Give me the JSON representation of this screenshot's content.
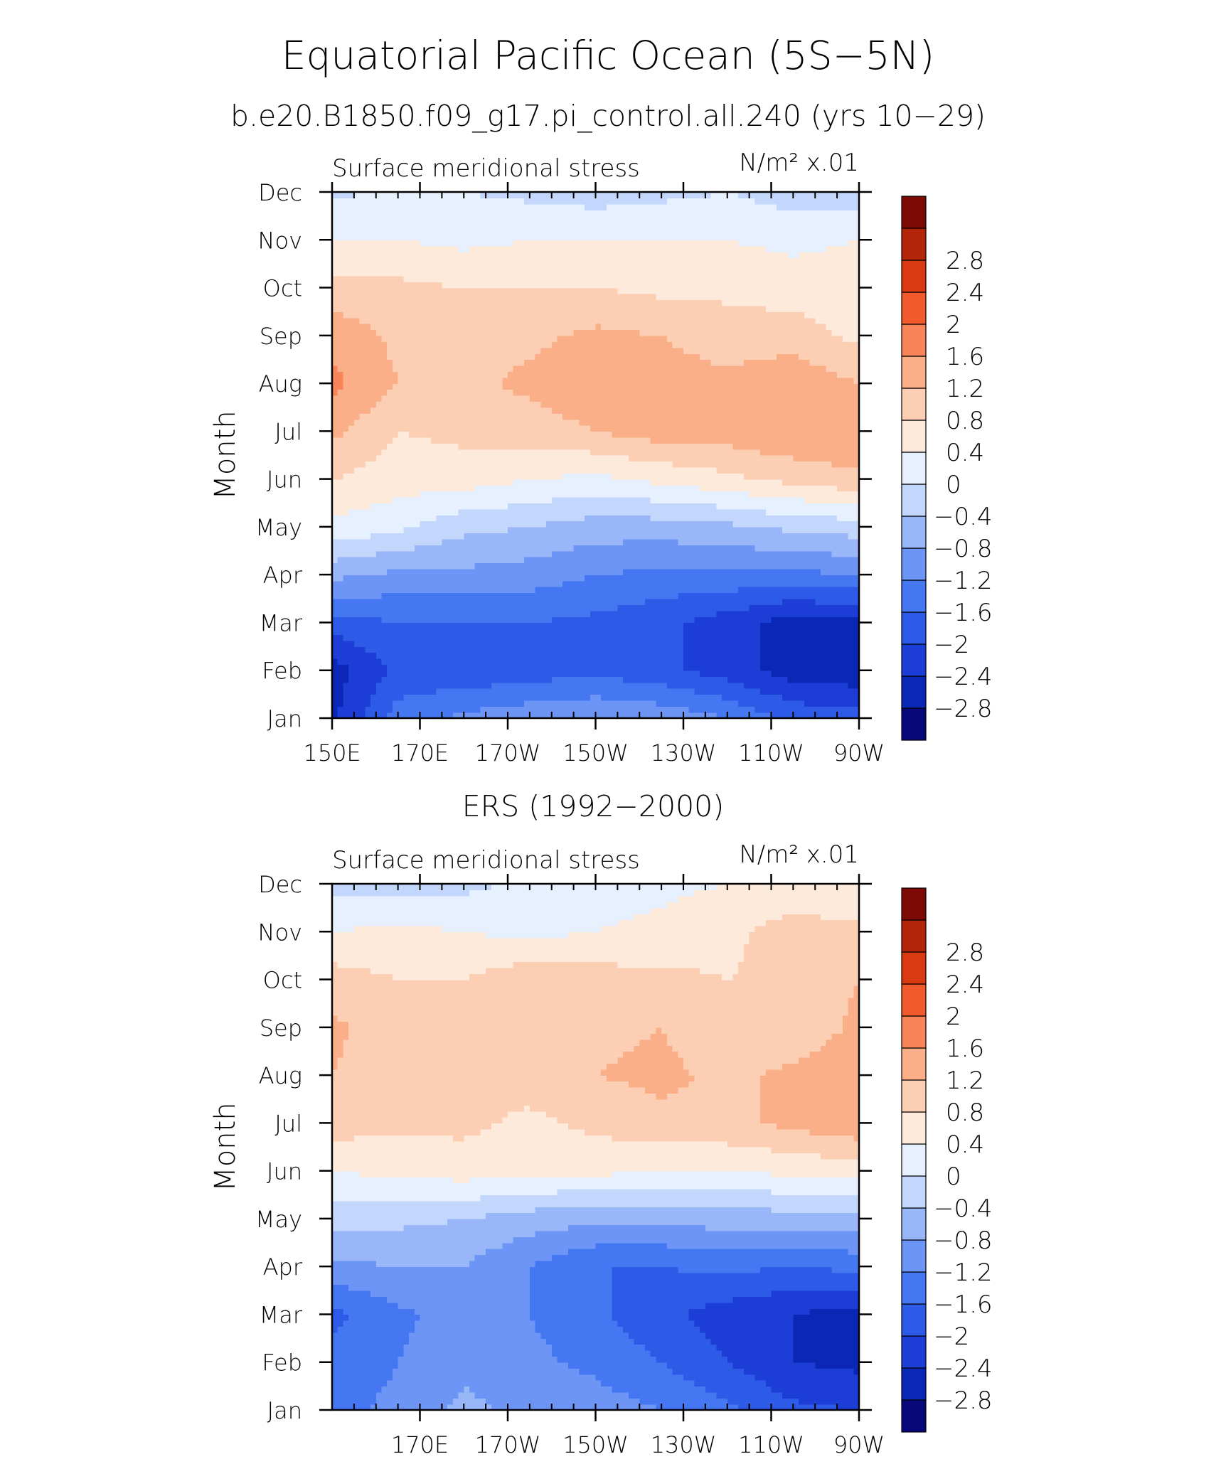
{
  "figure": {
    "title": "Equatorial Pacific Ocean (5S−5N)",
    "subtitle": "b.e20.B1850.f09_g17.pi_control.all.240 (yrs 10−29)"
  },
  "colorbar": {
    "levels": [
      -2.8,
      -2.4,
      -2,
      -1.6,
      -1.2,
      -0.8,
      -0.4,
      0,
      0.4,
      0.8,
      1.2,
      1.6,
      2,
      2.4,
      2.8
    ],
    "labels": [
      "−2.8",
      "−2.4",
      "−2",
      "−1.6",
      "−1.2",
      "−0.8",
      "−0.4",
      "0",
      "0.4",
      "0.8",
      "1.2",
      "1.6",
      "2",
      "2.4",
      "2.8"
    ],
    "colors": [
      "#08087a",
      "#0b27b5",
      "#1c3ed6",
      "#2e5ae8",
      "#4677f2",
      "#6d95f5",
      "#98b6f8",
      "#c3d6fb",
      "#e7f0fe",
      "#fdeadb",
      "#fccfb4",
      "#fbaf88",
      "#f8845a",
      "#f05a2c",
      "#d93a12",
      "#b42408",
      "#7e0a06"
    ]
  },
  "chart_data": [
    {
      "type": "heatmap",
      "title": "",
      "left_label": "Surface meridional stress",
      "right_label": "N/m² x.01",
      "xlabel": "",
      "ylabel": "Month",
      "x_range": [
        150,
        270
      ],
      "x_ticks": [
        150,
        170,
        190,
        210,
        230,
        250,
        270
      ],
      "x_tick_labels": [
        "150E",
        "170E",
        "170W",
        "150W",
        "130W",
        "110W",
        "90W"
      ],
      "y_ticks": [
        "Jan",
        "Feb",
        "Mar",
        "Apr",
        "May",
        "Jun",
        "Jul",
        "Aug",
        "Sep",
        "Oct",
        "Nov",
        "Dec"
      ],
      "lon": [
        150,
        165,
        180,
        195,
        210,
        225,
        240,
        255,
        270
      ],
      "months": [
        "Jan",
        "Feb",
        "Mar",
        "Apr",
        "May",
        "Jun",
        "Jul",
        "Aug",
        "Sep",
        "Oct",
        "Nov",
        "Dec"
      ],
      "values": [
        [
          -2.5,
          -1.4,
          -1.1,
          -0.9,
          -0.8,
          -0.9,
          -1.2,
          -1.7,
          -1.8
        ],
        [
          -2.6,
          -1.9,
          -1.9,
          -1.8,
          -1.7,
          -1.9,
          -2.2,
          -2.6,
          -2.7
        ],
        [
          -1.8,
          -1.6,
          -1.6,
          -1.6,
          -1.7,
          -1.9,
          -2.2,
          -2.6,
          -2.5
        ],
        [
          -0.7,
          -0.9,
          -0.9,
          -1.0,
          -1.2,
          -1.3,
          -1.3,
          -1.3,
          -1.2
        ],
        [
          0.3,
          0.1,
          -0.3,
          -0.4,
          -0.6,
          -0.6,
          -0.5,
          -0.3,
          -0.2
        ],
        [
          0.8,
          0.6,
          0.6,
          0.4,
          0.3,
          0.5,
          0.7,
          0.9,
          1.1
        ],
        [
          1.3,
          0.8,
          0.9,
          1.0,
          1.2,
          1.4,
          1.4,
          1.6,
          1.6
        ],
        [
          1.7,
          1.2,
          1.1,
          1.3,
          1.5,
          1.4,
          1.3,
          1.5,
          1.2
        ],
        [
          1.5,
          1.1,
          1.0,
          1.1,
          1.3,
          1.2,
          1.0,
          1.0,
          0.7
        ],
        [
          0.9,
          0.9,
          0.8,
          0.8,
          0.8,
          0.7,
          0.7,
          0.6,
          0.6
        ],
        [
          0.4,
          0.4,
          0.3,
          0.4,
          0.4,
          0.4,
          0.4,
          0.3,
          0.4
        ],
        [
          -0.1,
          0.1,
          0.0,
          -0.1,
          -0.2,
          -0.1,
          0.0,
          -0.2,
          -0.3
        ]
      ]
    },
    {
      "type": "heatmap",
      "title": "ERS (1992−2000)",
      "left_label": "Surface meridional stress",
      "right_label": "N/m² x.01",
      "xlabel": "",
      "ylabel": "Month",
      "x_range": [
        150,
        270
      ],
      "x_ticks": [
        170,
        190,
        210,
        230,
        250,
        270
      ],
      "x_tick_labels": [
        "170E",
        "170W",
        "150W",
        "130W",
        "110W",
        "90W"
      ],
      "y_ticks": [
        "Jan",
        "Feb",
        "Mar",
        "Apr",
        "May",
        "Jun",
        "Jul",
        "Aug",
        "Sep",
        "Oct",
        "Nov",
        "Dec"
      ],
      "lon": [
        150,
        165,
        180,
        195,
        210,
        225,
        240,
        255,
        270
      ],
      "months": [
        "Jan",
        "Feb",
        "Mar",
        "Apr",
        "May",
        "Jun",
        "Jul",
        "Aug",
        "Sep",
        "Oct",
        "Nov",
        "Dec"
      ],
      "values": [
        [
          -1.3,
          -1.1,
          -0.7,
          -0.9,
          -1.0,
          -1.2,
          -1.5,
          -1.9,
          -2.0
        ],
        [
          -1.5,
          -1.2,
          -0.9,
          -1.1,
          -1.3,
          -1.6,
          -2.0,
          -2.4,
          -2.5
        ],
        [
          -1.7,
          -1.3,
          -1.0,
          -1.2,
          -1.5,
          -1.9,
          -2.2,
          -2.4,
          -2.6
        ],
        [
          -0.9,
          -0.8,
          -0.8,
          -1.2,
          -1.6,
          -1.6,
          -1.5,
          -1.6,
          -1.5
        ],
        [
          -0.2,
          -0.3,
          -0.4,
          -0.6,
          -0.7,
          -0.7,
          -0.6,
          -0.6,
          -0.5
        ],
        [
          0.4,
          0.5,
          0.6,
          0.5,
          0.5,
          0.4,
          0.4,
          0.5,
          0.6
        ],
        [
          1.0,
          0.9,
          0.9,
          0.7,
          0.9,
          1.1,
          1.1,
          1.3,
          1.5
        ],
        [
          1.2,
          1.0,
          0.9,
          1.0,
          1.2,
          1.3,
          1.1,
          1.3,
          1.5
        ],
        [
          1.3,
          0.9,
          0.9,
          1.1,
          1.1,
          1.2,
          0.9,
          0.9,
          1.3
        ],
        [
          1.0,
          0.8,
          0.8,
          1.1,
          1.0,
          0.9,
          0.8,
          0.9,
          1.2
        ],
        [
          0.4,
          0.5,
          0.4,
          0.3,
          0.4,
          0.5,
          0.7,
          1.0,
          0.9
        ],
        [
          -0.1,
          -0.2,
          -0.1,
          0.1,
          0.2,
          0.3,
          0.4,
          0.5,
          0.4
        ]
      ]
    }
  ]
}
